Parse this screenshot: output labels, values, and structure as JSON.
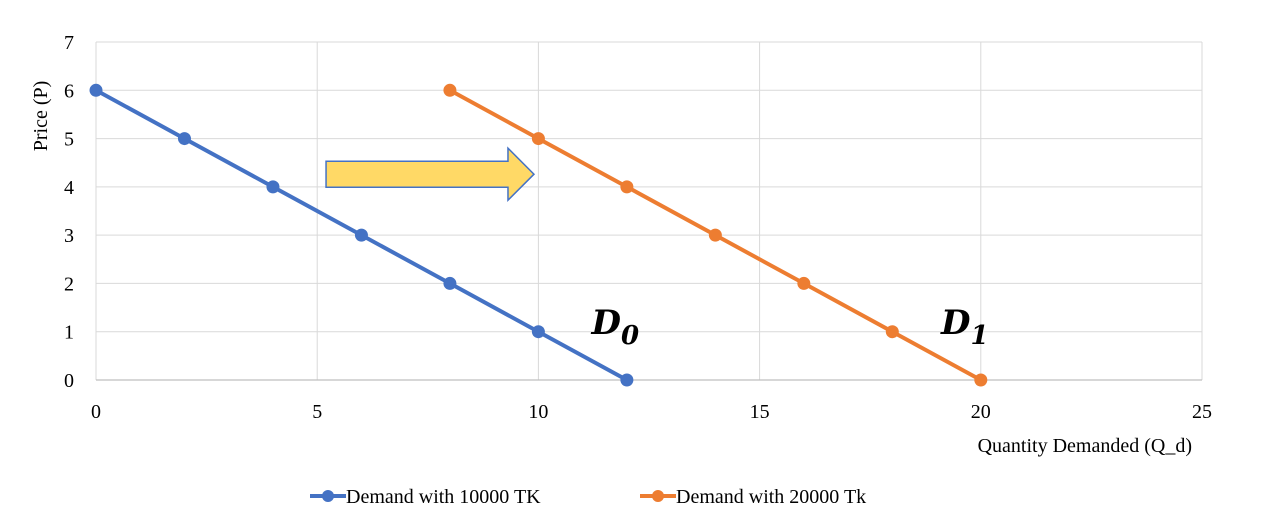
{
  "chart_data": {
    "type": "line",
    "xlabel": "Quantity Demanded (Q_d)",
    "ylabel": "Price (P)",
    "xlim": [
      0,
      25
    ],
    "ylim": [
      0,
      7
    ],
    "x_ticks": [
      0,
      5,
      10,
      15,
      20,
      25
    ],
    "y_ticks": [
      0,
      1,
      2,
      3,
      4,
      5,
      6,
      7
    ],
    "grid": true,
    "legend_position": "bottom",
    "series": [
      {
        "name": "Demand with 10000 TK",
        "color": "#4472C4",
        "points": [
          {
            "x": 0,
            "y": 6
          },
          {
            "x": 2,
            "y": 5
          },
          {
            "x": 4,
            "y": 4
          },
          {
            "x": 6,
            "y": 3
          },
          {
            "x": 8,
            "y": 2
          },
          {
            "x": 10,
            "y": 1
          },
          {
            "x": 12,
            "y": 0
          }
        ]
      },
      {
        "name": "Demand with 20000 Tk",
        "color": "#ED7D31",
        "points": [
          {
            "x": 8,
            "y": 6
          },
          {
            "x": 10,
            "y": 5
          },
          {
            "x": 12,
            "y": 4
          },
          {
            "x": 14,
            "y": 3
          },
          {
            "x": 16,
            "y": 2
          },
          {
            "x": 18,
            "y": 1
          },
          {
            "x": 20,
            "y": 0
          }
        ]
      }
    ],
    "annotations": [
      {
        "base": "D",
        "sub": "0",
        "at": {
          "x": 11.2,
          "y": 0.95
        }
      },
      {
        "base": "D",
        "sub": "1",
        "at": {
          "x": 19.1,
          "y": 0.95
        }
      }
    ],
    "shift_arrow": {
      "from": {
        "x": 5.2,
        "y": 4.2
      },
      "to": {
        "x": 9.9,
        "y": 4.2
      },
      "fill": "#FFD966",
      "stroke": "#4472C4"
    }
  }
}
